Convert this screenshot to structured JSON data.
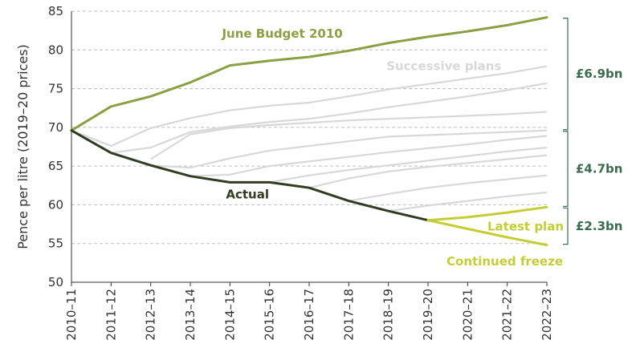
{
  "chart_data": {
    "type": "line",
    "ylabel": "Pence  per litre (2019–20 prices)",
    "ylim": [
      50,
      85
    ],
    "yticks": [
      50,
      55,
      60,
      65,
      70,
      75,
      80,
      85
    ],
    "grid": "horizontal dashed",
    "categories": [
      "2010–11",
      "2011–12",
      "2012–13",
      "2013–14",
      "2014–15",
      "2015–16",
      "2016–17",
      "2017–18",
      "2018–19",
      "2019–20",
      "2020–21",
      "2021–22",
      "2022–23"
    ],
    "series": [
      {
        "name": "June Budget 2010",
        "color": "#8aa043",
        "values": [
          69.6,
          72.7,
          74.0,
          75.8,
          78.0,
          78.6,
          79.1,
          79.9,
          80.9,
          81.7,
          82.4,
          83.2,
          84.2
        ]
      },
      {
        "name": "Actual",
        "color": "#313c23",
        "values": [
          69.6,
          66.7,
          65.1,
          63.7,
          62.9,
          62.9,
          62.2,
          60.5,
          59.2,
          58.0,
          null,
          null,
          null
        ]
      },
      {
        "name": "Latest plan",
        "color": "#c4ce34",
        "values": [
          null,
          null,
          null,
          null,
          null,
          null,
          null,
          null,
          null,
          58.0,
          58.4,
          59.0,
          59.7
        ]
      },
      {
        "name": "Continued freeze",
        "color": "#c4ce34",
        "values": [
          null,
          null,
          null,
          null,
          null,
          null,
          null,
          null,
          null,
          58.0,
          56.9,
          55.8,
          54.8
        ]
      }
    ],
    "successive_plans": {
      "label": "Successive plans",
      "color": "#d8d8d8",
      "lines": [
        [
          69.6,
          67.6,
          69.9,
          71.2,
          72.2,
          72.8,
          73.2,
          74.0,
          74.9,
          75.6,
          76.3,
          77.0,
          77.9
        ],
        [
          null,
          66.7,
          67.4,
          69.4,
          70.1,
          70.7,
          71.1,
          71.8,
          72.6,
          73.3,
          74.0,
          74.8,
          75.7
        ],
        [
          null,
          null,
          65.9,
          69.1,
          69.9,
          70.3,
          70.6,
          70.9,
          71.1,
          71.3,
          71.5,
          71.7,
          72.0
        ],
        [
          null,
          null,
          65.1,
          64.8,
          66.0,
          67.0,
          67.6,
          68.2,
          68.8,
          69.0,
          69.2,
          69.4,
          69.6
        ],
        [
          null,
          null,
          null,
          63.7,
          63.9,
          65.0,
          65.6,
          66.2,
          66.8,
          67.3,
          67.8,
          68.4,
          68.9
        ],
        [
          null,
          null,
          null,
          null,
          null,
          62.9,
          63.8,
          64.5,
          65.1,
          65.7,
          66.3,
          66.9,
          67.4
        ],
        [
          null,
          null,
          null,
          null,
          null,
          null,
          62.2,
          63.4,
          64.3,
          64.9,
          65.4,
          65.9,
          66.4
        ],
        [
          null,
          null,
          null,
          null,
          null,
          null,
          null,
          60.5,
          61.4,
          62.2,
          62.8,
          63.3,
          63.8
        ],
        [
          null,
          null,
          null,
          null,
          null,
          null,
          null,
          null,
          59.2,
          59.9,
          60.5,
          61.1,
          61.6
        ]
      ]
    },
    "brackets": [
      {
        "label": "£6.9bn",
        "from": 84.2,
        "to": 69.6
      },
      {
        "label": "£4.7bn",
        "from": 69.6,
        "to": 59.7
      },
      {
        "label": "£2.3bn",
        "from": 59.7,
        "to": 54.8
      }
    ],
    "annotations": {
      "june": "June Budget 2010",
      "actual": "Actual",
      "latest": "Latest plan",
      "freeze": "Continued freeze",
      "successive": "Successive plans"
    },
    "colors": {
      "bracket": "#3b6b4e",
      "grid": "#bfbfbf",
      "axis": "#333333"
    }
  }
}
